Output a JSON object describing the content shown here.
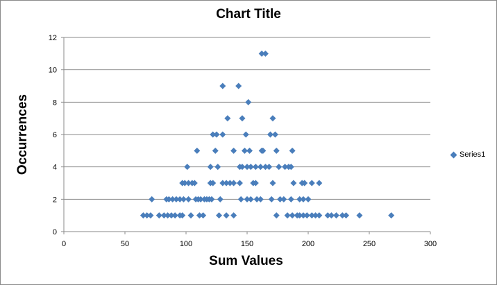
{
  "chart_data": {
    "type": "scatter",
    "title": "Chart Title",
    "xlabel": "Sum Values",
    "ylabel": "Occurrences",
    "xlim": [
      0,
      300
    ],
    "ylim": [
      0,
      12
    ],
    "xticks": [
      "0",
      "50",
      "100",
      "150",
      "200",
      "250",
      "300"
    ],
    "yticks": [
      "0",
      "2",
      "4",
      "6",
      "8",
      "10",
      "12"
    ],
    "grid": "horizontal",
    "legend": "right",
    "marker_color": "#4a7ebb",
    "series": [
      {
        "name": "Series1",
        "points": [
          [
            65,
            1
          ],
          [
            68,
            1
          ],
          [
            71,
            1
          ],
          [
            78,
            1
          ],
          [
            82,
            1
          ],
          [
            85,
            1
          ],
          [
            88,
            1
          ],
          [
            91,
            1
          ],
          [
            95,
            1
          ],
          [
            97,
            1
          ],
          [
            104,
            1
          ],
          [
            111,
            1
          ],
          [
            114,
            1
          ],
          [
            127,
            1
          ],
          [
            133,
            1
          ],
          [
            139,
            1
          ],
          [
            174,
            1
          ],
          [
            183,
            1
          ],
          [
            187,
            1
          ],
          [
            191,
            1
          ],
          [
            193,
            1
          ],
          [
            196,
            1
          ],
          [
            199,
            1
          ],
          [
            203,
            1
          ],
          [
            206,
            1
          ],
          [
            209,
            1
          ],
          [
            216,
            1
          ],
          [
            219,
            1
          ],
          [
            223,
            1
          ],
          [
            228,
            1
          ],
          [
            231,
            1
          ],
          [
            242,
            1
          ],
          [
            268,
            1
          ],
          [
            72,
            2
          ],
          [
            84,
            2
          ],
          [
            86,
            2
          ],
          [
            89,
            2
          ],
          [
            92,
            2
          ],
          [
            95,
            2
          ],
          [
            98,
            2
          ],
          [
            102,
            2
          ],
          [
            108,
            2
          ],
          [
            110,
            2
          ],
          [
            112,
            2
          ],
          [
            115,
            2
          ],
          [
            117,
            2
          ],
          [
            119,
            2
          ],
          [
            121,
            2
          ],
          [
            128,
            2
          ],
          [
            145,
            2
          ],
          [
            150,
            2
          ],
          [
            153,
            2
          ],
          [
            158,
            2
          ],
          [
            161,
            2
          ],
          [
            170,
            2
          ],
          [
            177,
            2
          ],
          [
            180,
            2
          ],
          [
            186,
            2
          ],
          [
            193,
            2
          ],
          [
            196,
            2
          ],
          [
            200,
            2
          ],
          [
            97,
            3
          ],
          [
            99,
            3
          ],
          [
            102,
            3
          ],
          [
            105,
            3
          ],
          [
            107,
            3
          ],
          [
            120,
            3
          ],
          [
            122,
            3
          ],
          [
            130,
            3
          ],
          [
            133,
            3
          ],
          [
            136,
            3
          ],
          [
            139,
            3
          ],
          [
            144,
            3
          ],
          [
            155,
            3
          ],
          [
            157,
            3
          ],
          [
            171,
            3
          ],
          [
            188,
            3
          ],
          [
            195,
            3
          ],
          [
            197,
            3
          ],
          [
            203,
            3
          ],
          [
            209,
            3
          ],
          [
            101,
            4
          ],
          [
            120,
            4
          ],
          [
            126,
            4
          ],
          [
            144,
            4
          ],
          [
            146,
            4
          ],
          [
            150,
            4
          ],
          [
            153,
            4
          ],
          [
            157,
            4
          ],
          [
            161,
            4
          ],
          [
            165,
            4
          ],
          [
            168,
            4
          ],
          [
            176,
            4
          ],
          [
            181,
            4
          ],
          [
            184,
            4
          ],
          [
            186,
            4
          ],
          [
            109,
            5
          ],
          [
            124,
            5
          ],
          [
            139,
            5
          ],
          [
            148,
            5
          ],
          [
            152,
            5
          ],
          [
            162,
            5
          ],
          [
            163,
            5
          ],
          [
            174,
            5
          ],
          [
            187,
            5
          ],
          [
            122,
            6
          ],
          [
            125,
            6
          ],
          [
            130,
            6
          ],
          [
            149,
            6
          ],
          [
            169,
            6
          ],
          [
            173,
            6
          ],
          [
            134,
            7
          ],
          [
            146,
            7
          ],
          [
            171,
            7
          ],
          [
            151,
            8
          ],
          [
            130,
            9
          ],
          [
            143,
            9
          ],
          [
            162,
            11
          ],
          [
            165,
            11
          ]
        ]
      }
    ]
  }
}
